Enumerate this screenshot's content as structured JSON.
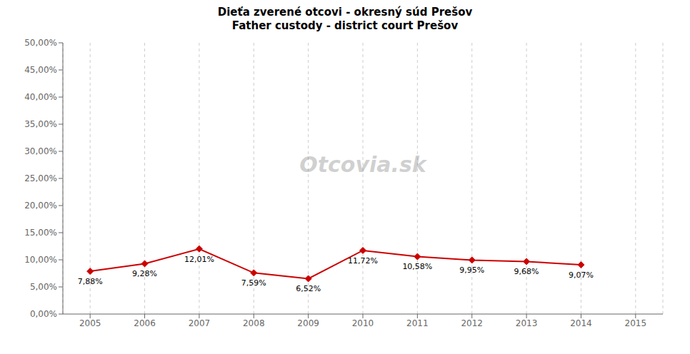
{
  "chart_data": {
    "type": "line",
    "title": "Dieťa zverené otcovi - okresný súd Prešov",
    "subtitle": "Father custody - district court Prešov",
    "x": [
      2005,
      2006,
      2007,
      2008,
      2009,
      2010,
      2011,
      2012,
      2013,
      2014
    ],
    "values": [
      0.0788,
      0.0928,
      0.1201,
      0.0759,
      0.0652,
      0.1172,
      0.1058,
      0.0995,
      0.0968,
      0.0907
    ],
    "value_labels": [
      "7,88%",
      "9,28%",
      "12,01%",
      "7,59%",
      "6,52%",
      "11,72%",
      "10,58%",
      "9,95%",
      "9,68%",
      "9,07%"
    ],
    "data_labels": true,
    "color": "#cc0000",
    "marker": "diamond",
    "xlim": [
      2004.5,
      2015.5
    ],
    "xticks": [
      2005,
      2006,
      2007,
      2008,
      2009,
      2010,
      2011,
      2012,
      2013,
      2014,
      2015
    ],
    "ylim": [
      0,
      0.5
    ],
    "yticks": [
      {
        "value": 0.0,
        "label": "0,00%"
      },
      {
        "value": 0.05,
        "label": "5,00%"
      },
      {
        "value": 0.1,
        "label": "10,00%"
      },
      {
        "value": 0.15,
        "label": "15,00%"
      },
      {
        "value": 0.2,
        "label": "20,00%"
      },
      {
        "value": 0.25,
        "label": "25,00%"
      },
      {
        "value": 0.3,
        "label": "30,00%"
      },
      {
        "value": 0.35,
        "label": "35,00%"
      },
      {
        "value": 0.4,
        "label": "40,00%"
      },
      {
        "value": 0.45,
        "label": "45,00%"
      },
      {
        "value": 0.5,
        "label": "50,00%"
      }
    ],
    "grid": "x",
    "annotations": [
      "Otcovia.sk"
    ]
  }
}
